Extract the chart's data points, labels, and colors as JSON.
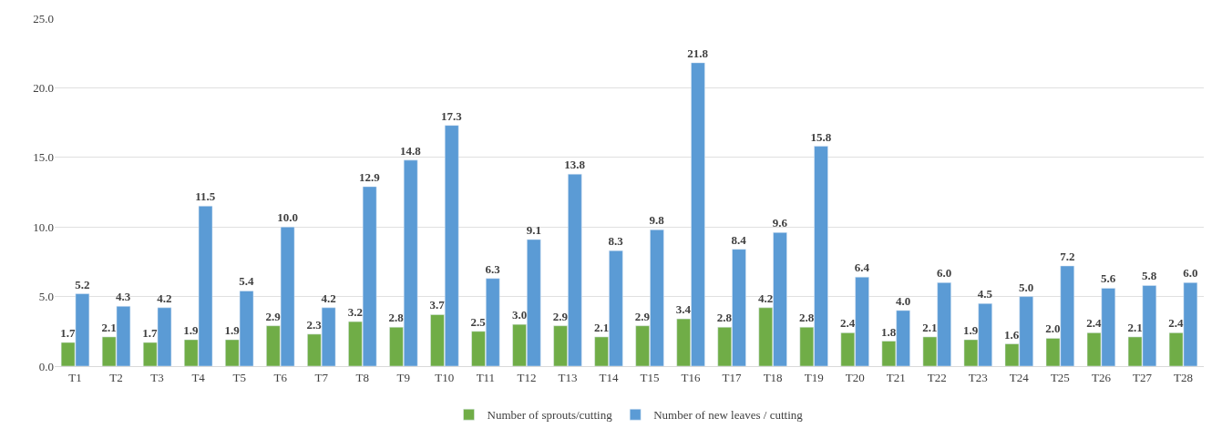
{
  "chart_data": {
    "type": "bar",
    "categories": [
      "T1",
      "T2",
      "T3",
      "T4",
      "T5",
      "T6",
      "T7",
      "T8",
      "T9",
      "T10",
      "T11",
      "T12",
      "T13",
      "T14",
      "T15",
      "T16",
      "T17",
      "T18",
      "T19",
      "T20",
      "T21",
      "T22",
      "T23",
      "T24",
      "T25",
      "T26",
      "T27",
      "T28"
    ],
    "series": [
      {
        "name": "Number of sprouts/cutting",
        "color": "#70ad47",
        "values": [
          1.7,
          2.1,
          1.7,
          1.9,
          1.9,
          2.9,
          2.3,
          3.2,
          2.8,
          3.7,
          2.5,
          3.0,
          2.9,
          2.1,
          2.9,
          3.4,
          2.8,
          4.2,
          2.8,
          2.4,
          1.8,
          2.1,
          1.9,
          1.6,
          2.0,
          2.4,
          2.1,
          2.4
        ],
        "value_labels": [
          "1.7",
          "2.1",
          "1.7",
          "1.9",
          "1.9",
          "2.9",
          "2.3",
          "3.2",
          "2.8",
          "3.7",
          "2.5",
          "3.0",
          "2.9",
          "2.1",
          "2.9",
          "3.4",
          "2.8",
          "4.2",
          "2.8",
          "2.4",
          "1.8",
          "2.1",
          "1.9",
          "1.6",
          "2.0",
          "2.4",
          "2.1",
          "2.4"
        ]
      },
      {
        "name": "Number of new leaves / cutting",
        "color": "#5b9bd5",
        "values": [
          5.2,
          4.3,
          4.2,
          11.5,
          5.4,
          10.0,
          4.2,
          12.9,
          14.8,
          17.3,
          6.3,
          9.1,
          13.8,
          8.3,
          9.8,
          21.8,
          8.4,
          9.6,
          15.8,
          6.4,
          4.0,
          6.0,
          4.5,
          5.0,
          7.2,
          5.6,
          5.8,
          6.0
        ],
        "value_labels": [
          "5.2",
          "4.3",
          "4.2",
          "11.5",
          "5.4",
          "10.0",
          "4.2",
          "12.9",
          "14.8",
          "17.3",
          "6.3",
          "9.1",
          "13.8",
          "8.3",
          "9.8",
          "21.8",
          "8.4",
          "9.6",
          "15.8",
          "6.4",
          "4.0",
          "6.0",
          "4.5",
          "5.0",
          "7.2",
          "5.6",
          "5.8",
          "6.0"
        ]
      }
    ],
    "ylim": [
      0,
      25
    ],
    "yticks": [
      {
        "value": 0,
        "label": "0.0"
      },
      {
        "value": 5,
        "label": "5.0"
      },
      {
        "value": 10,
        "label": "10.0"
      },
      {
        "value": 15,
        "label": "15.0"
      },
      {
        "value": 20,
        "label": "20.0"
      },
      {
        "value": 25,
        "label": "25.0"
      }
    ],
    "grid": "y",
    "legend": "bottom"
  }
}
